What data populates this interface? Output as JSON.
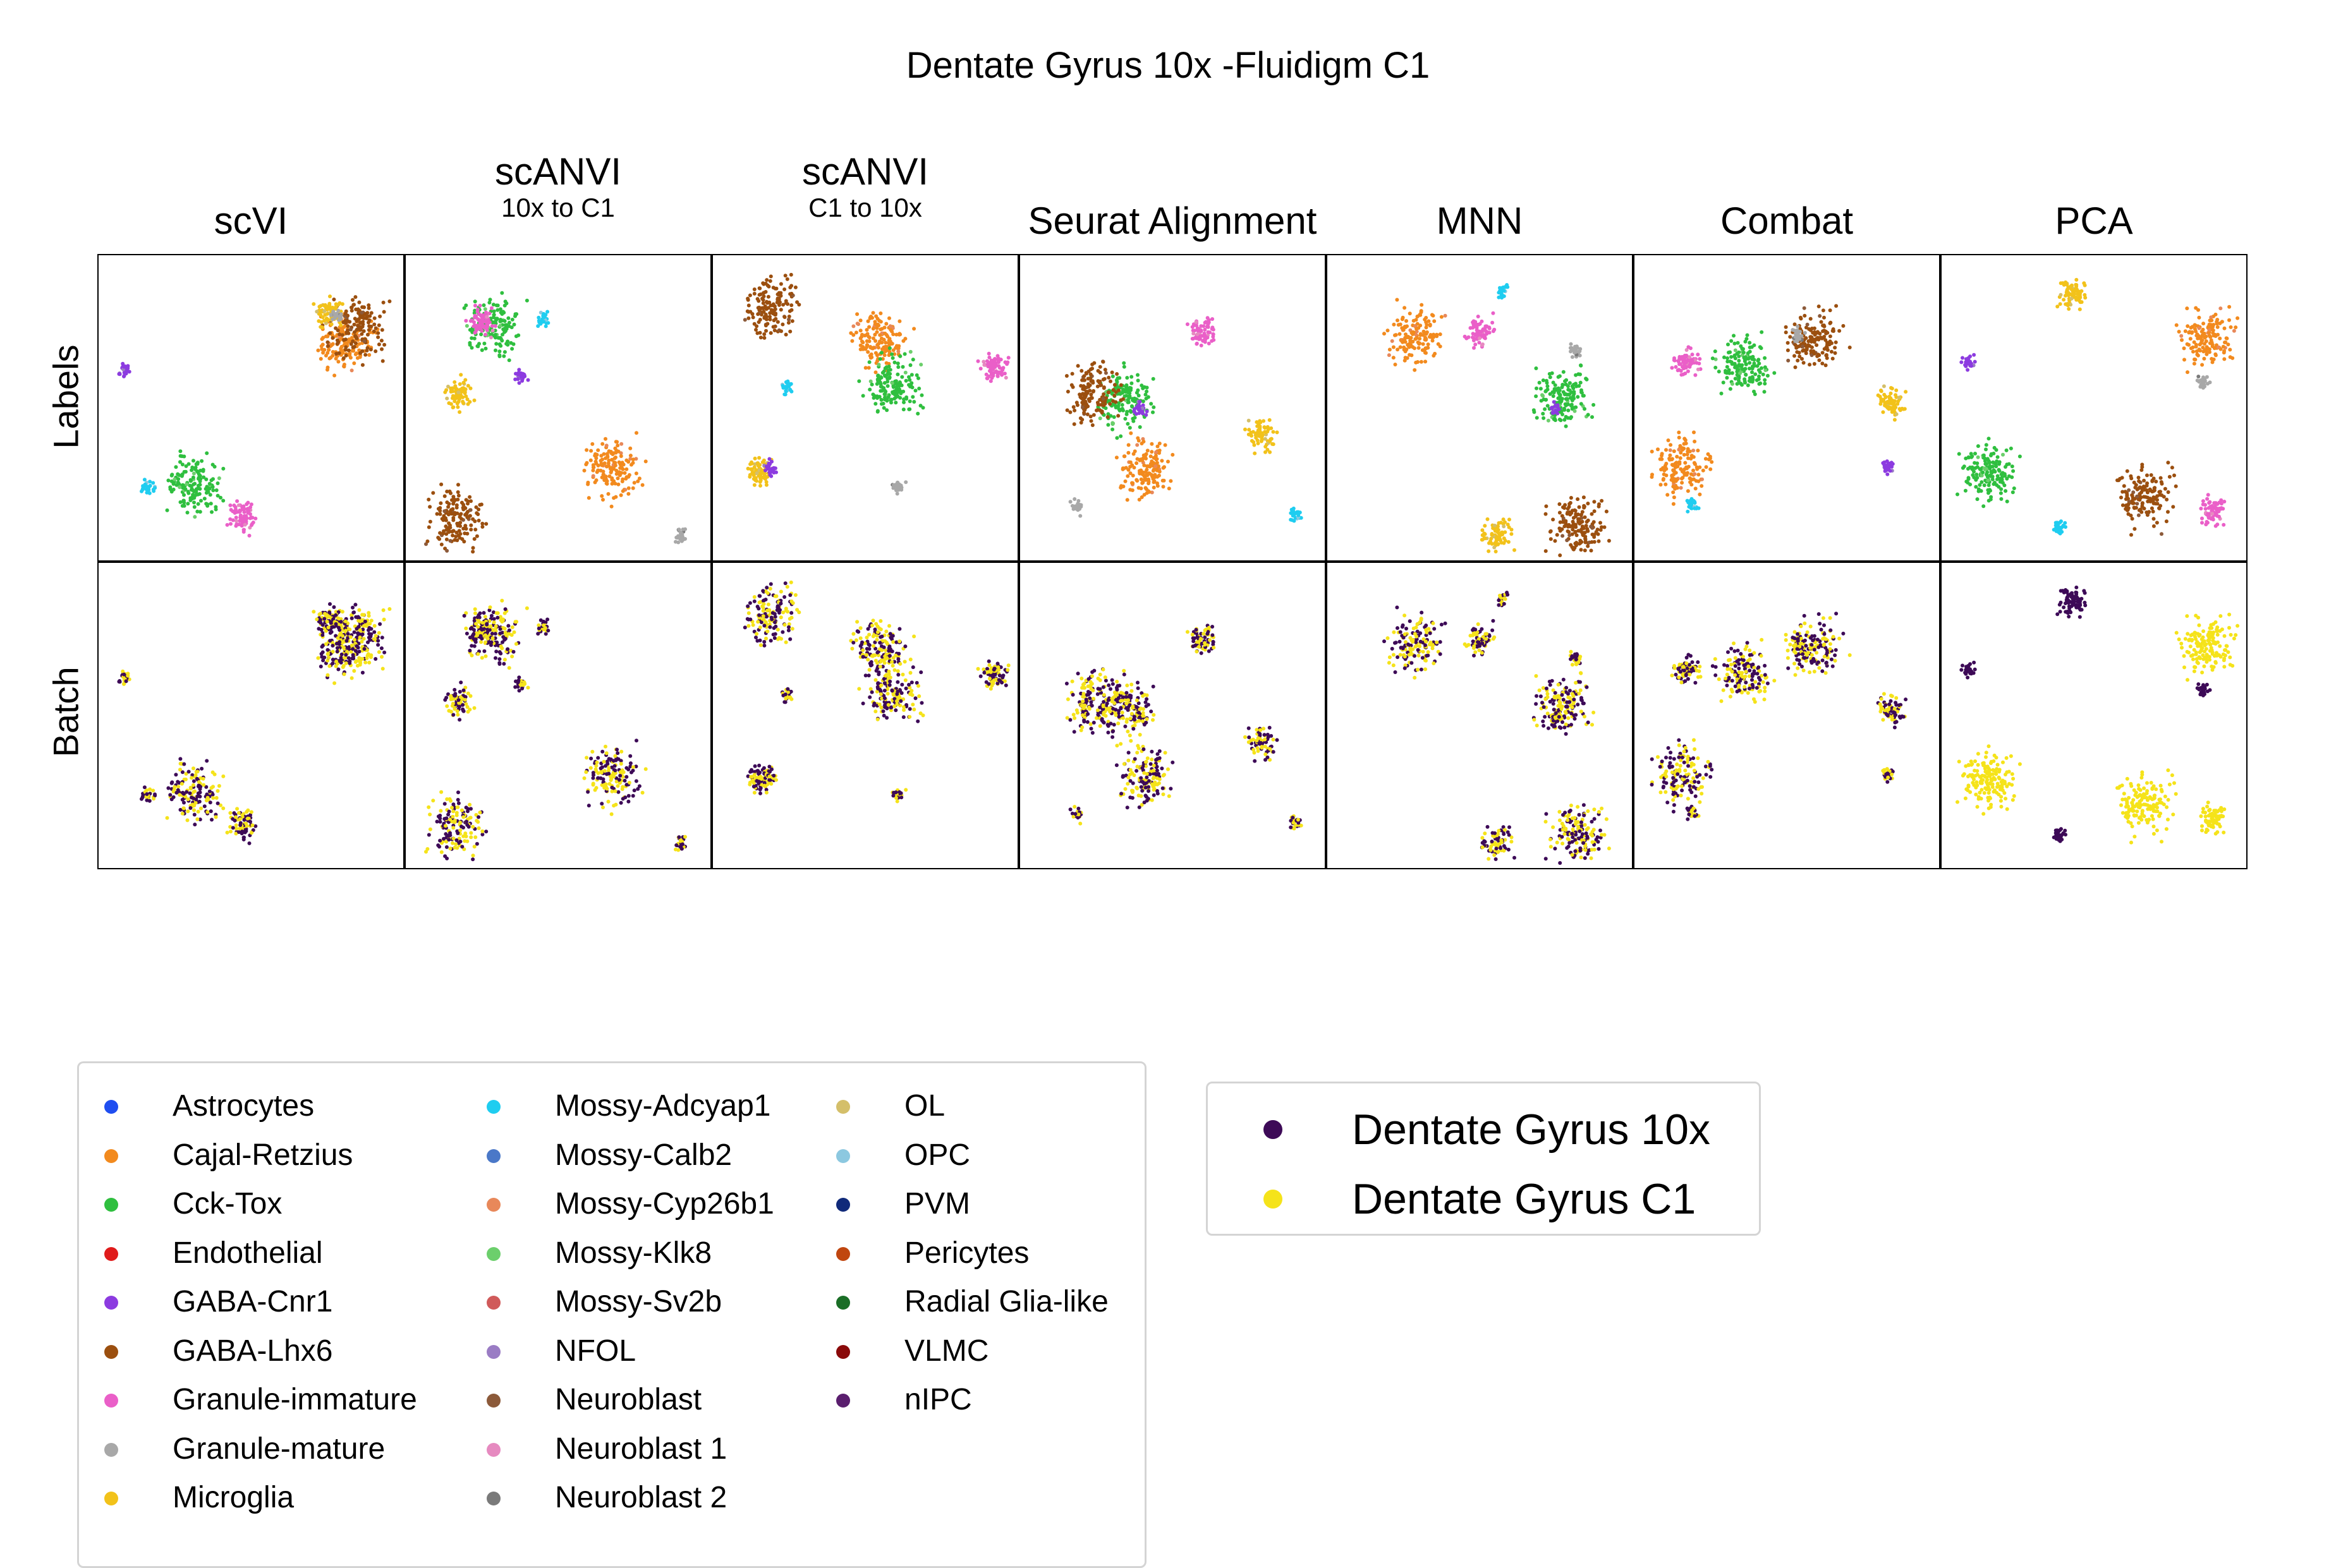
{
  "chart_data": {
    "type": "scatter",
    "title": "Dentate Gyrus 10x -Fluidigm C1",
    "columns": [
      {
        "title": "scVI",
        "subtitle": ""
      },
      {
        "title": "scANVI",
        "subtitle": "10x to C1"
      },
      {
        "title": "scANVI",
        "subtitle": "C1 to 10x"
      },
      {
        "title": "Seurat Alignment",
        "subtitle": ""
      },
      {
        "title": "MNN",
        "subtitle": ""
      },
      {
        "title": "Combat",
        "subtitle": ""
      },
      {
        "title": "PCA",
        "subtitle": ""
      }
    ],
    "rows": [
      "Labels",
      "Batch"
    ],
    "label_legend": [
      {
        "name": "Astrocytes",
        "color": "#1f4ef0"
      },
      {
        "name": "Cajal-Retzius",
        "color": "#f28a1e"
      },
      {
        "name": "Cck-Tox",
        "color": "#2fbf3f"
      },
      {
        "name": "Endothelial",
        "color": "#e01b1b"
      },
      {
        "name": "GABA-Cnr1",
        "color": "#8c3be0"
      },
      {
        "name": "GABA-Lhx6",
        "color": "#9b4f0f"
      },
      {
        "name": "Granule-immature",
        "color": "#ea5fc8"
      },
      {
        "name": "Granule-mature",
        "color": "#a8a8a8"
      },
      {
        "name": "Microglia",
        "color": "#f2c21a"
      },
      {
        "name": "Mossy-Adcyap1",
        "color": "#1fcdf0"
      },
      {
        "name": "Mossy-Calb2",
        "color": "#4a78c8"
      },
      {
        "name": "Mossy-Cyp26b1",
        "color": "#e8885a"
      },
      {
        "name": "Mossy-Klk8",
        "color": "#6ccf6c"
      },
      {
        "name": "Mossy-Sv2b",
        "color": "#d05a5a"
      },
      {
        "name": "NFOL",
        "color": "#9a7cc4"
      },
      {
        "name": "Neuroblast",
        "color": "#8c5a3a"
      },
      {
        "name": "Neuroblast 1",
        "color": "#e68ac0"
      },
      {
        "name": "Neuroblast 2",
        "color": "#7a7a7a"
      },
      {
        "name": "OL",
        "color": "#d4bf6a"
      },
      {
        "name": "OPC",
        "color": "#8cc8e0"
      },
      {
        "name": "PVM",
        "color": "#102a7a"
      },
      {
        "name": "Pericytes",
        "color": "#c0460f"
      },
      {
        "name": "Radial Glia-like",
        "color": "#1a6e26"
      },
      {
        "name": "VLMC",
        "color": "#8a0a0a"
      },
      {
        "name": "nIPC",
        "color": "#5a1e6e"
      }
    ],
    "batch_legend": [
      {
        "name": "Dentate Gyrus 10x",
        "color": "#3d0a57"
      },
      {
        "name": "Dentate Gyrus C1",
        "color": "#f5e31a"
      }
    ]
  }
}
